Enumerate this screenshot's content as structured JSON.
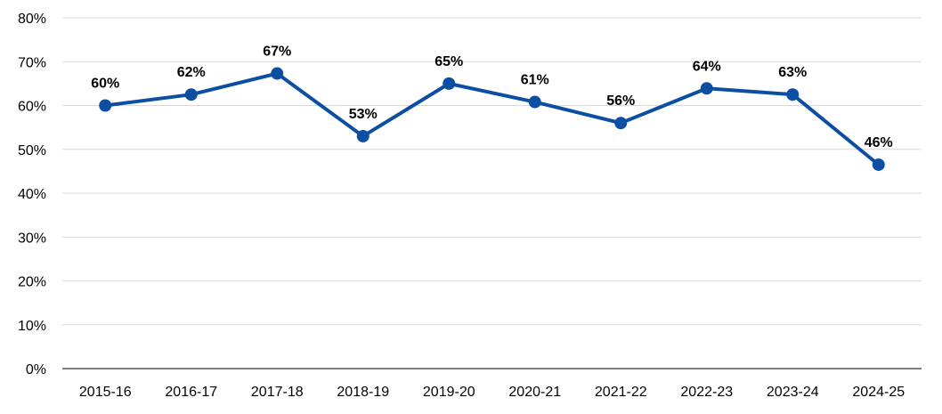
{
  "chart_data": {
    "type": "line",
    "categories": [
      "2015-16",
      "2016-17",
      "2017-18",
      "2018-19",
      "2019-20",
      "2020-21",
      "2021-22",
      "2022-23",
      "2023-24",
      "2024-25"
    ],
    "series": [
      {
        "values": [
          0.6,
          0.625,
          0.673,
          0.53,
          0.65,
          0.608,
          0.56,
          0.639,
          0.625,
          0.465
        ],
        "labels": [
          "60%",
          "62%",
          "67%",
          "53%",
          "65%",
          "61%",
          "56%",
          "64%",
          "63%",
          "46%"
        ],
        "color": "#0B4EA2"
      }
    ],
    "ylim": [
      0,
      0.8
    ],
    "yticks": [
      0,
      0.1,
      0.2,
      0.3,
      0.4,
      0.5,
      0.6,
      0.7,
      0.8
    ],
    "ytick_labels": [
      "0%",
      "10%",
      "20%",
      "30%",
      "40%",
      "50%",
      "60%",
      "70%",
      "80%"
    ],
    "grid": true,
    "gridColor": "#d9d9d9",
    "axisColor": "#808080",
    "legend": "none",
    "title": "",
    "xlabel": "",
    "ylabel": ""
  }
}
